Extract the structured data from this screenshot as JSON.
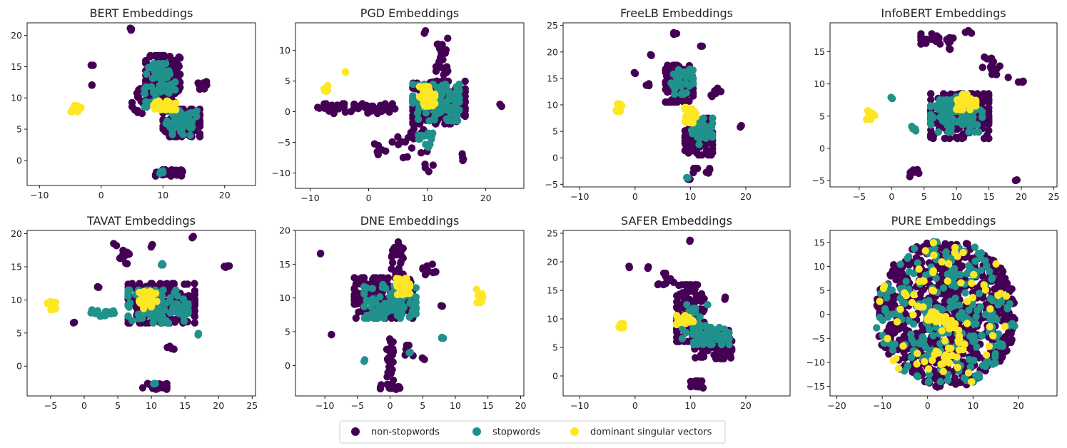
{
  "legend": {
    "items": [
      {
        "label": "non-stopwords",
        "color": "#440154"
      },
      {
        "label": "stopwords",
        "color": "#21918c"
      },
      {
        "label": "dominant singular vectors",
        "color": "#fde725"
      }
    ]
  },
  "chart_data": [
    {
      "type": "scatter",
      "title": "BERT Embeddings",
      "xlim": [
        -12,
        25
      ],
      "ylim": [
        -4,
        22
      ],
      "xticks": [
        -10,
        0,
        10,
        20
      ],
      "yticks": [
        0,
        5,
        10,
        15,
        20
      ],
      "clusters": [
        {
          "cls": 0,
          "cx": 10,
          "cy": 13,
          "rx": 2.8,
          "ry": 3.8,
          "n": 160
        },
        {
          "cls": 0,
          "cx": 13,
          "cy": 6,
          "rx": 3,
          "ry": 2.2,
          "n": 130
        },
        {
          "cls": 1,
          "cx": 9.5,
          "cy": 12,
          "rx": 2.5,
          "ry": 3.5,
          "n": 60
        },
        {
          "cls": 1,
          "cx": 13,
          "cy": 6,
          "rx": 2.5,
          "ry": 2,
          "n": 60
        },
        {
          "cls": 0,
          "cx": 11,
          "cy": -2,
          "rx": 2.2,
          "ry": 0.5,
          "n": 45
        },
        {
          "cls": 1,
          "cx": 10,
          "cy": -1.8,
          "rx": 0.5,
          "ry": 0.4,
          "n": 4
        },
        {
          "cls": 0,
          "cx": 16.5,
          "cy": 12,
          "rx": 0.8,
          "ry": 0.6,
          "n": 10
        },
        {
          "cls": 0,
          "cx": 5,
          "cy": 21,
          "rx": 0.3,
          "ry": 0.2,
          "n": 3
        },
        {
          "cls": 0,
          "cx": -1.5,
          "cy": 15.3,
          "rx": 0.2,
          "ry": 0.2,
          "n": 2
        },
        {
          "cls": 0,
          "cx": -1.5,
          "cy": 12.2,
          "rx": 0.2,
          "ry": 0.2,
          "n": 2
        },
        {
          "cls": 0,
          "cx": 6,
          "cy": 9.5,
          "rx": 1,
          "ry": 2,
          "n": 15
        },
        {
          "cls": 2,
          "cx": -4,
          "cy": 8.3,
          "rx": 0.9,
          "ry": 0.5,
          "n": 14
        },
        {
          "cls": 2,
          "cx": 10.3,
          "cy": 8.8,
          "rx": 1.8,
          "ry": 0.7,
          "n": 40
        }
      ]
    },
    {
      "type": "scatter",
      "title": "PGD Embeddings",
      "xlim": [
        -12.5,
        26.5
      ],
      "ylim": [
        -12.5,
        14.5
      ],
      "xticks": [
        -10,
        0,
        10,
        20
      ],
      "yticks": [
        -10,
        -5,
        0,
        5,
        10
      ],
      "clusters": [
        {
          "cls": 0,
          "cx": 12,
          "cy": 1.5,
          "rx": 4.5,
          "ry": 3.5,
          "n": 200
        },
        {
          "cls": 1,
          "cx": 11.5,
          "cy": 1.5,
          "rx": 4,
          "ry": 3,
          "n": 90
        },
        {
          "cls": 0,
          "cx": 1,
          "cy": 0.5,
          "rx": 3.5,
          "ry": 0.8,
          "n": 40
        },
        {
          "cls": 0,
          "cx": -6,
          "cy": 0.5,
          "rx": 3,
          "ry": 0.8,
          "n": 25
        },
        {
          "cls": 0,
          "cx": 12.5,
          "cy": 9,
          "rx": 1,
          "ry": 3,
          "n": 25
        },
        {
          "cls": 0,
          "cx": 7,
          "cy": -5,
          "rx": 3,
          "ry": 2.5,
          "n": 18
        },
        {
          "cls": 0,
          "cx": 2,
          "cy": -6,
          "rx": 1,
          "ry": 1,
          "n": 6
        },
        {
          "cls": 1,
          "cx": 10,
          "cy": -4,
          "rx": 1.5,
          "ry": 0.5,
          "n": 10
        },
        {
          "cls": 1,
          "cx": 10,
          "cy": -5.5,
          "rx": 0.8,
          "ry": 0.3,
          "n": 5
        },
        {
          "cls": 0,
          "cx": 10,
          "cy": -9,
          "rx": 1,
          "ry": 1.5,
          "n": 4
        },
        {
          "cls": 0,
          "cx": 9.5,
          "cy": 13,
          "rx": 0.2,
          "ry": 0.2,
          "n": 2
        },
        {
          "cls": 0,
          "cx": 22.5,
          "cy": 1,
          "rx": 0.2,
          "ry": 0.2,
          "n": 2
        },
        {
          "cls": 0,
          "cx": 16,
          "cy": -7.5,
          "rx": 0.5,
          "ry": 1,
          "n": 4
        },
        {
          "cls": 2,
          "cx": -7.3,
          "cy": 3.5,
          "rx": 0.3,
          "ry": 1,
          "n": 10
        },
        {
          "cls": 2,
          "cx": -4,
          "cy": 6.3,
          "rx": 0.2,
          "ry": 0.2,
          "n": 2
        },
        {
          "cls": 2,
          "cx": 10,
          "cy": 2.5,
          "rx": 1.3,
          "ry": 1.6,
          "n": 45
        }
      ]
    },
    {
      "type": "scatter",
      "title": "FreeLB Embeddings",
      "xlim": [
        -13,
        28
      ],
      "ylim": [
        -5.5,
        25.5
      ],
      "xticks": [
        -10,
        0,
        10,
        20
      ],
      "yticks": [
        -5,
        0,
        5,
        10,
        15,
        20,
        25
      ],
      "clusters": [
        {
          "cls": 0,
          "cx": 8,
          "cy": 14,
          "rx": 2.5,
          "ry": 3.5,
          "n": 110
        },
        {
          "cls": 1,
          "cx": 8.5,
          "cy": 14.5,
          "rx": 2,
          "ry": 2.5,
          "n": 40
        },
        {
          "cls": 0,
          "cx": 11.5,
          "cy": 4,
          "rx": 2.5,
          "ry": 3.5,
          "n": 120
        },
        {
          "cls": 1,
          "cx": 12,
          "cy": 5,
          "rx": 2,
          "ry": 2.5,
          "n": 45
        },
        {
          "cls": 0,
          "cx": 7,
          "cy": 23.5,
          "rx": 0.5,
          "ry": 0.3,
          "n": 3
        },
        {
          "cls": 0,
          "cx": 2.5,
          "cy": 14,
          "rx": 0.5,
          "ry": 0.5,
          "n": 3
        },
        {
          "cls": 0,
          "cx": 0,
          "cy": 16,
          "rx": 0.2,
          "ry": 0.2,
          "n": 2
        },
        {
          "cls": 0,
          "cx": 3,
          "cy": 19.5,
          "rx": 0.2,
          "ry": 0.2,
          "n": 2
        },
        {
          "cls": 0,
          "cx": 14.5,
          "cy": 12.5,
          "rx": 1,
          "ry": 1.2,
          "n": 8
        },
        {
          "cls": 0,
          "cx": 12,
          "cy": -2.5,
          "rx": 1.5,
          "ry": 0.5,
          "n": 8
        },
        {
          "cls": 0,
          "cx": 9.5,
          "cy": -4,
          "rx": 0.5,
          "ry": 0.3,
          "n": 4
        },
        {
          "cls": 1,
          "cx": 9.5,
          "cy": -3.8,
          "rx": 0.3,
          "ry": 0.2,
          "n": 2
        },
        {
          "cls": 0,
          "cx": 19,
          "cy": 6,
          "rx": 0.2,
          "ry": 0.2,
          "n": 2
        },
        {
          "cls": 0,
          "cx": 12,
          "cy": 21,
          "rx": 0.2,
          "ry": 0.2,
          "n": 2
        },
        {
          "cls": 2,
          "cx": -3,
          "cy": 9.5,
          "rx": 0.6,
          "ry": 0.7,
          "n": 10
        },
        {
          "cls": 2,
          "cx": 10,
          "cy": 8,
          "rx": 1,
          "ry": 1.5,
          "n": 35
        }
      ]
    },
    {
      "type": "scatter",
      "title": "InfoBERT Embeddings",
      "xlim": [
        -9.5,
        25.5
      ],
      "ylim": [
        -6,
        19.5
      ],
      "xticks": [
        -5,
        0,
        5,
        10,
        15,
        20,
        25
      ],
      "yticks": [
        -5,
        0,
        5,
        10,
        15
      ],
      "clusters": [
        {
          "cls": 0,
          "cx": 10.5,
          "cy": 5,
          "rx": 4.5,
          "ry": 3.5,
          "n": 220
        },
        {
          "cls": 1,
          "cx": 10,
          "cy": 5.5,
          "rx": 4,
          "ry": 3,
          "n": 90
        },
        {
          "cls": 0,
          "cx": 7,
          "cy": 17,
          "rx": 2.5,
          "ry": 0.8,
          "n": 25
        },
        {
          "cls": 0,
          "cx": 12,
          "cy": 18,
          "rx": 0.8,
          "ry": 0.3,
          "n": 6
        },
        {
          "cls": 0,
          "cx": 9,
          "cy": 15.5,
          "rx": 0.3,
          "ry": 0.3,
          "n": 3
        },
        {
          "cls": 0,
          "cx": 3.5,
          "cy": -3.8,
          "rx": 0.7,
          "ry": 0.6,
          "n": 8
        },
        {
          "cls": 0,
          "cx": 16,
          "cy": 12.5,
          "rx": 2,
          "ry": 1.5,
          "n": 12
        },
        {
          "cls": 0,
          "cx": 20,
          "cy": 10,
          "rx": 0.5,
          "ry": 1,
          "n": 4
        },
        {
          "cls": 0,
          "cx": 19.3,
          "cy": -4.8,
          "rx": 0.2,
          "ry": 0.2,
          "n": 2
        },
        {
          "cls": 0,
          "cx": 14.5,
          "cy": 14,
          "rx": 0.2,
          "ry": 0.2,
          "n": 2
        },
        {
          "cls": 1,
          "cx": 0,
          "cy": 7.8,
          "rx": 0.2,
          "ry": 0.2,
          "n": 2
        },
        {
          "cls": 1,
          "cx": 3.5,
          "cy": 3,
          "rx": 0.4,
          "ry": 0.4,
          "n": 4
        },
        {
          "cls": 2,
          "cx": -3.3,
          "cy": 5.3,
          "rx": 0.7,
          "ry": 0.8,
          "n": 12
        },
        {
          "cls": 2,
          "cx": 11.5,
          "cy": 7.2,
          "rx": 1.5,
          "ry": 1.2,
          "n": 40
        }
      ]
    },
    {
      "type": "scatter",
      "title": "TAVAT Embeddings",
      "xlim": [
        -8.5,
        25.5
      ],
      "ylim": [
        -4.5,
        20.5
      ],
      "xticks": [
        -5,
        0,
        5,
        10,
        15,
        20,
        25
      ],
      "yticks": [
        0,
        5,
        10,
        15,
        20
      ],
      "clusters": [
        {
          "cls": 0,
          "cx": 11.5,
          "cy": 9.5,
          "rx": 5,
          "ry": 3,
          "n": 200
        },
        {
          "cls": 1,
          "cx": 11,
          "cy": 9,
          "rx": 4.5,
          "ry": 2.5,
          "n": 90
        },
        {
          "cls": 1,
          "cx": 3,
          "cy": 8,
          "rx": 2,
          "ry": 0.6,
          "n": 20
        },
        {
          "cls": 0,
          "cx": 6,
          "cy": 16.5,
          "rx": 0.7,
          "ry": 1.5,
          "n": 12
        },
        {
          "cls": 0,
          "cx": 4.5,
          "cy": 18.5,
          "rx": 0.3,
          "ry": 0.3,
          "n": 2
        },
        {
          "cls": 0,
          "cx": 16,
          "cy": 19.5,
          "rx": 0.3,
          "ry": 0.3,
          "n": 2
        },
        {
          "cls": 0,
          "cx": 10,
          "cy": 18.3,
          "rx": 0.3,
          "ry": 0.3,
          "n": 2
        },
        {
          "cls": 0,
          "cx": 21,
          "cy": 15,
          "rx": 0.6,
          "ry": 0.3,
          "n": 4
        },
        {
          "cls": 0,
          "cx": 2,
          "cy": 11.8,
          "rx": 0.6,
          "ry": 0.4,
          "n": 3
        },
        {
          "cls": 0,
          "cx": 10.5,
          "cy": -3,
          "rx": 1.8,
          "ry": 0.5,
          "n": 25
        },
        {
          "cls": 1,
          "cx": 10.5,
          "cy": -2.5,
          "rx": 0.3,
          "ry": 0.3,
          "n": 2
        },
        {
          "cls": 0,
          "cx": 13,
          "cy": 2.7,
          "rx": 1,
          "ry": 0.3,
          "n": 4
        },
        {
          "cls": 0,
          "cx": -1.5,
          "cy": 6.5,
          "rx": 0.2,
          "ry": 0.2,
          "n": 2
        },
        {
          "cls": 1,
          "cx": 17,
          "cy": 4.8,
          "rx": 0.2,
          "ry": 0.2,
          "n": 2
        },
        {
          "cls": 1,
          "cx": 11.5,
          "cy": 15.5,
          "rx": 0.5,
          "ry": 0.3,
          "n": 3
        },
        {
          "cls": 2,
          "cx": -4.8,
          "cy": 9.3,
          "rx": 0.7,
          "ry": 0.8,
          "n": 12
        },
        {
          "cls": 2,
          "cx": 9.5,
          "cy": 10,
          "rx": 1.3,
          "ry": 1.3,
          "n": 40
        }
      ]
    },
    {
      "type": "scatter",
      "title": "DNE Embeddings",
      "xlim": [
        -14.5,
        20.5
      ],
      "ylim": [
        -4.5,
        20
      ],
      "xticks": [
        -10,
        -5,
        0,
        5,
        10,
        15,
        20
      ],
      "yticks": [
        0,
        5,
        10,
        15,
        20
      ],
      "clusters": [
        {
          "cls": 0,
          "cx": -1,
          "cy": 10,
          "rx": 4.5,
          "ry": 3,
          "n": 200
        },
        {
          "cls": 1,
          "cx": 0,
          "cy": 9.5,
          "rx": 4,
          "ry": 2.5,
          "n": 90
        },
        {
          "cls": 0,
          "cx": 1,
          "cy": 16,
          "rx": 1,
          "ry": 2.5,
          "n": 25
        },
        {
          "cls": 0,
          "cx": 0,
          "cy": 1,
          "rx": 0.5,
          "ry": 4,
          "n": 30
        },
        {
          "cls": 0,
          "cx": 0,
          "cy": -3.2,
          "rx": 1.5,
          "ry": 0.4,
          "n": 15
        },
        {
          "cls": 0,
          "cx": 6,
          "cy": 14,
          "rx": 1,
          "ry": 1,
          "n": 10
        },
        {
          "cls": 0,
          "cx": 3,
          "cy": 2,
          "rx": 1,
          "ry": 1,
          "n": 5
        },
        {
          "cls": 0,
          "cx": -9,
          "cy": 4.5,
          "rx": 0.2,
          "ry": 0.2,
          "n": 2
        },
        {
          "cls": 0,
          "cx": -10.5,
          "cy": 16.7,
          "rx": 0.2,
          "ry": 0.2,
          "n": 2
        },
        {
          "cls": 0,
          "cx": 8,
          "cy": 8.8,
          "rx": 0.2,
          "ry": 0.2,
          "n": 2
        },
        {
          "cls": 0,
          "cx": 5,
          "cy": 1,
          "rx": 0.3,
          "ry": 0.3,
          "n": 2
        },
        {
          "cls": 1,
          "cx": 8,
          "cy": 4,
          "rx": 0.3,
          "ry": 0.3,
          "n": 3
        },
        {
          "cls": 1,
          "cx": -4,
          "cy": 0.7,
          "rx": 0.2,
          "ry": 0.2,
          "n": 2
        },
        {
          "cls": 1,
          "cx": 3,
          "cy": 2,
          "rx": 0.2,
          "ry": 0.2,
          "n": 2
        },
        {
          "cls": 2,
          "cx": 13.7,
          "cy": 10.3,
          "rx": 0.5,
          "ry": 1,
          "n": 12
        },
        {
          "cls": 2,
          "cx": 2,
          "cy": 11.7,
          "rx": 1,
          "ry": 1.2,
          "n": 40
        }
      ]
    },
    {
      "type": "scatter",
      "title": "SAFER Embeddings",
      "xlim": [
        -13,
        28
      ],
      "ylim": [
        -3.5,
        25.5
      ],
      "xticks": [
        -10,
        0,
        10,
        20
      ],
      "yticks": [
        0,
        5,
        10,
        15,
        20,
        25
      ],
      "clusters": [
        {
          "cls": 0,
          "cx": 10,
          "cy": 11,
          "rx": 2.5,
          "ry": 5,
          "n": 120
        },
        {
          "cls": 0,
          "cx": 14,
          "cy": 5.5,
          "rx": 3.5,
          "ry": 2.5,
          "n": 120
        },
        {
          "cls": 1,
          "cx": 11,
          "cy": 9,
          "rx": 2.5,
          "ry": 3.5,
          "n": 40
        },
        {
          "cls": 1,
          "cx": 14.5,
          "cy": 7,
          "rx": 2.5,
          "ry": 1.5,
          "n": 30
        },
        {
          "cls": 0,
          "cx": 5.5,
          "cy": 17,
          "rx": 1.5,
          "ry": 1,
          "n": 12
        },
        {
          "cls": 0,
          "cx": 11,
          "cy": -1.5,
          "rx": 1.3,
          "ry": 0.6,
          "n": 15
        },
        {
          "cls": 0,
          "cx": 16,
          "cy": 13.5,
          "rx": 0.3,
          "ry": 0.3,
          "n": 2
        },
        {
          "cls": 0,
          "cx": 10,
          "cy": 23.8,
          "rx": 0.2,
          "ry": 0.2,
          "n": 2
        },
        {
          "cls": 0,
          "cx": -1,
          "cy": 19.2,
          "rx": 0.2,
          "ry": 0.2,
          "n": 2
        },
        {
          "cls": 0,
          "cx": 2.5,
          "cy": 19,
          "rx": 0.2,
          "ry": 0.2,
          "n": 2
        },
        {
          "cls": 2,
          "cx": -2.5,
          "cy": 8.6,
          "rx": 0.4,
          "ry": 0.6,
          "n": 10
        },
        {
          "cls": 2,
          "cx": 9,
          "cy": 9.8,
          "rx": 1.5,
          "ry": 0.8,
          "n": 30
        }
      ]
    },
    {
      "type": "scatter",
      "title": "PURE Embeddings",
      "xlim": [
        -21.5,
        28.5
      ],
      "ylim": [
        -17,
        17.5
      ],
      "xticks": [
        -20,
        -10,
        0,
        10,
        20
      ],
      "yticks": [
        -15,
        -10,
        -5,
        0,
        5,
        10,
        15
      ],
      "disk": {
        "cx": 4,
        "cy": 0,
        "r": 15.5,
        "n0": 750,
        "n1": 250,
        "n2": 70
      },
      "clusters": [
        {
          "cls": 2,
          "cx": 2,
          "cy": -0.5,
          "rx": 2,
          "ry": 1,
          "n": 30
        },
        {
          "cls": 2,
          "cx": 5,
          "cy": -2,
          "rx": 1.2,
          "ry": 1,
          "n": 10
        },
        {
          "cls": 2,
          "cx": 4,
          "cy": -8,
          "rx": 3,
          "ry": 2.5,
          "n": 15
        }
      ]
    }
  ]
}
